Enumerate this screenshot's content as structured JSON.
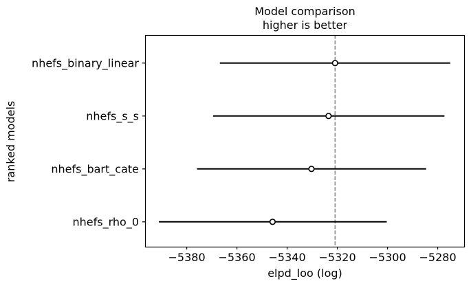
{
  "chart_data": {
    "type": "scatter",
    "title": "Model comparison\nhigher is better",
    "xlabel": "elpd_loo (log)",
    "ylabel": "ranked models",
    "categories": [
      "nhefs_binary_linear",
      "nhefs_s_s",
      "nhefs_bart_cate",
      "nhefs_rho_0"
    ],
    "series": [
      {
        "name": "elpd_loo",
        "values": [
          -5320.9,
          -5323.5,
          -5330.3,
          -5345.8
        ]
      },
      {
        "name": "error_bar_lower",
        "values": [
          -5366.8,
          -5369.5,
          -5375.9,
          -5391.1
        ]
      },
      {
        "name": "error_bar_upper",
        "values": [
          -5275.0,
          -5277.3,
          -5284.6,
          -5300.3
        ]
      }
    ],
    "reference_line_x": -5320.9,
    "reference_line_style": "dashed",
    "xticks": [
      -5380,
      -5360,
      -5340,
      -5320,
      -5300,
      -5280
    ],
    "xtick_labels": [
      "−5380",
      "−5360",
      "−5340",
      "−5320",
      "−5300",
      "−5280"
    ],
    "xlim": [
      -5396.6,
      -5269.2
    ],
    "grid": false,
    "legend": false,
    "marker_style": "open-circle",
    "colors": {
      "errorbar": "#000000",
      "marker_edge": "#000000",
      "marker_face": "#ffffff",
      "reference_line": "#808080",
      "axis": "#000000",
      "text": "#000000",
      "background": "#ffffff"
    }
  }
}
